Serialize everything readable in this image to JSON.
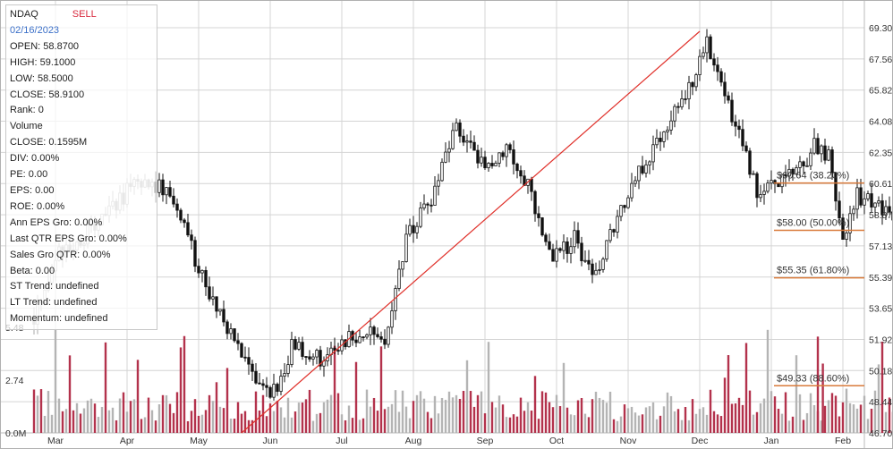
{
  "info": {
    "ticker": "NDAQ",
    "signal": "SELL",
    "date": "02/16/2023",
    "lines": [
      "OPEN: 58.8700",
      "HIGH: 59.1000",
      "LOW: 58.5000",
      "CLOSE: 58.9100",
      "Rank: 0",
      "Volume",
      "CLOSE: 0.1595M",
      "DIV: 0.00%",
      "PE: 0.00",
      "EPS: 0.00",
      "ROE: 0.00%",
      "Ann EPS Gro: 0.00%",
      "Last QTR EPS Gro: 0.00%",
      "Sales Gro QTR: 0.00%",
      "Beta: 0.00",
      "ST Trend: undefined",
      "LT Trend: undefined",
      "Momentum: undefined"
    ]
  },
  "chart_data": {
    "type": "candlestick",
    "x_tick_labels": [
      "Mar",
      "Apr",
      "May",
      "Jun",
      "Jul",
      "Aug",
      "Sep",
      "Oct",
      "Nov",
      "Dec",
      "Jan",
      "Feb"
    ],
    "y_tick_labels": [
      "69.30",
      "67.56",
      "65.82",
      "64.08",
      "62.35",
      "60.61",
      "58.87",
      "57.13",
      "55.39",
      "53.65",
      "51.92",
      "50.18",
      "48.44",
      "46.70"
    ],
    "ylim": [
      46.7,
      69.3
    ],
    "volume_tick_labels": [
      "5.48",
      "2.74",
      "0.0M"
    ],
    "volume_ylim": [
      0,
      5.48
    ],
    "grid": true,
    "price_path": [
      {
        "month": -0.3,
        "price": 53.2
      },
      {
        "month": 0.0,
        "price": 56.5
      },
      {
        "month": 0.5,
        "price": 58.0
      },
      {
        "month": 1.0,
        "price": 60.2
      },
      {
        "month": 1.3,
        "price": 60.8
      },
      {
        "month": 1.6,
        "price": 60.0
      },
      {
        "month": 2.0,
        "price": 56.0
      },
      {
        "month": 2.4,
        "price": 52.5
      },
      {
        "month": 2.8,
        "price": 49.5
      },
      {
        "month": 3.0,
        "price": 48.5
      },
      {
        "month": 3.3,
        "price": 51.5
      },
      {
        "month": 3.8,
        "price": 50.8
      },
      {
        "month": 4.2,
        "price": 52.2
      },
      {
        "month": 4.6,
        "price": 52.0
      },
      {
        "month": 4.9,
        "price": 57.5
      },
      {
        "month": 5.3,
        "price": 60.0
      },
      {
        "month": 5.6,
        "price": 63.8
      },
      {
        "month": 6.0,
        "price": 61.5
      },
      {
        "month": 6.3,
        "price": 62.8
      },
      {
        "month": 6.6,
        "price": 60.5
      },
      {
        "month": 6.9,
        "price": 56.5
      },
      {
        "month": 7.25,
        "price": 57.5
      },
      {
        "month": 7.55,
        "price": 55.5
      },
      {
        "month": 7.9,
        "price": 59.0
      },
      {
        "month": 8.2,
        "price": 61.5
      },
      {
        "month": 8.6,
        "price": 64.5
      },
      {
        "month": 8.9,
        "price": 66.0
      },
      {
        "month": 9.1,
        "price": 68.6
      },
      {
        "month": 9.35,
        "price": 66.0
      },
      {
        "month": 9.6,
        "price": 62.5
      },
      {
        "month": 9.8,
        "price": 60.0
      },
      {
        "month": 10.2,
        "price": 60.7
      },
      {
        "month": 10.6,
        "price": 62.6
      },
      {
        "month": 10.8,
        "price": 62.0
      },
      {
        "month": 11.0,
        "price": 57.5
      },
      {
        "month": 11.2,
        "price": 60.0
      },
      {
        "month": 11.6,
        "price": 59.0
      },
      {
        "month": 11.9,
        "price": 58.5
      }
    ],
    "trend_line": {
      "from": {
        "month": 2.6,
        "price": 46.7
      },
      "to": {
        "month": 9.0,
        "price": 69.1
      }
    },
    "fibonacci_levels": [
      {
        "label": "$60.64 (38.20%)",
        "price": 60.64
      },
      {
        "label": "$58.00 (50.00%)",
        "price": 58.0
      },
      {
        "label": "$55.35 (61.80%)",
        "price": 55.35
      },
      {
        "label": "$49.33 (88.60%)",
        "price": 49.33
      }
    ]
  }
}
